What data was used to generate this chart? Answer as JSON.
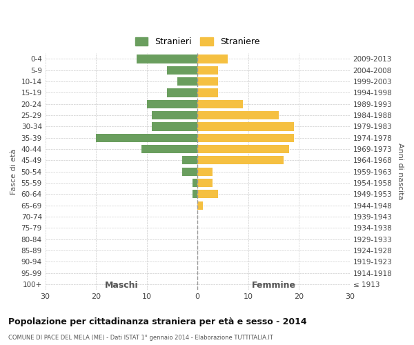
{
  "age_groups": [
    "0-4",
    "5-9",
    "10-14",
    "15-19",
    "20-24",
    "25-29",
    "30-34",
    "35-39",
    "40-44",
    "45-49",
    "50-54",
    "55-59",
    "60-64",
    "65-69",
    "70-74",
    "75-79",
    "80-84",
    "85-89",
    "90-94",
    "95-99",
    "100+"
  ],
  "birth_years": [
    "2009-2013",
    "2004-2008",
    "1999-2003",
    "1994-1998",
    "1989-1993",
    "1984-1988",
    "1979-1983",
    "1974-1978",
    "1969-1973",
    "1964-1968",
    "1959-1963",
    "1954-1958",
    "1949-1953",
    "1944-1948",
    "1939-1943",
    "1934-1938",
    "1929-1933",
    "1924-1928",
    "1919-1923",
    "1914-1918",
    "≤ 1913"
  ],
  "maschi": [
    12,
    6,
    4,
    6,
    10,
    9,
    9,
    20,
    11,
    3,
    3,
    1,
    1,
    0,
    0,
    0,
    0,
    0,
    0,
    0,
    0
  ],
  "femmine": [
    6,
    4,
    4,
    4,
    9,
    16,
    19,
    19,
    18,
    17,
    3,
    3,
    4,
    1,
    0,
    0,
    0,
    0,
    0,
    0,
    0
  ],
  "maschi_color": "#6a9e5e",
  "femmine_color": "#f5c041",
  "title": "Popolazione per cittadinanza straniera per età e sesso - 2014",
  "subtitle": "COMUNE DI PACE DEL MELA (ME) - Dati ISTAT 1° gennaio 2014 - Elaborazione TUTTITALIA.IT",
  "ylabel_left": "Fasce di età",
  "ylabel_right": "Anni di nascita",
  "xlabel_left": "Maschi",
  "xlabel_right": "Femmine",
  "legend_maschi": "Stranieri",
  "legend_femmine": "Straniere",
  "xlim": 30,
  "background_color": "#ffffff",
  "grid_color": "#cccccc"
}
